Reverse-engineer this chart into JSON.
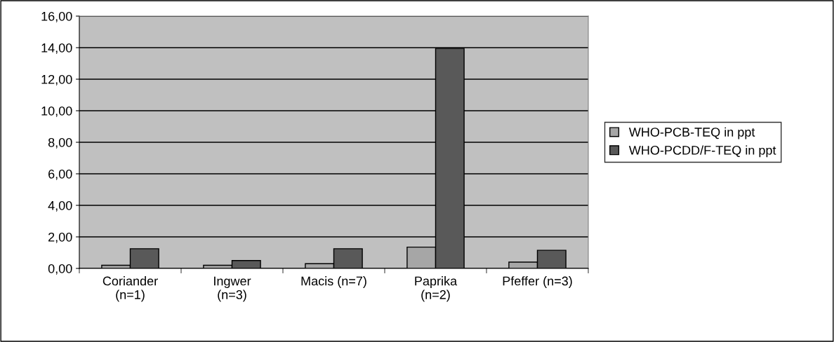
{
  "chart_data": {
    "type": "bar",
    "categories": [
      "Coriander\n(n=1)",
      "Ingwer\n(n=3)",
      "Macis (n=7)",
      "Paprika\n(n=2)",
      "Pfeffer (n=3)"
    ],
    "series": [
      {
        "name": "WHO-PCB-TEQ in ppt",
        "color": "#a6a6a6",
        "values": [
          0.2,
          0.2,
          0.3,
          1.35,
          0.4
        ]
      },
      {
        "name": "WHO-PCDD/F-TEQ in ppt",
        "color": "#595959",
        "values": [
          1.25,
          0.5,
          1.25,
          13.95,
          1.15
        ]
      }
    ],
    "ylim": [
      0,
      16
    ],
    "yticks": [
      {
        "value": 0,
        "label": "0,00"
      },
      {
        "value": 2,
        "label": "2,00"
      },
      {
        "value": 4,
        "label": "4,00"
      },
      {
        "value": 6,
        "label": "6,00"
      },
      {
        "value": 8,
        "label": "8,00"
      },
      {
        "value": 10,
        "label": "10,00"
      },
      {
        "value": 12,
        "label": "12,00"
      },
      {
        "value": 14,
        "label": "14,00"
      },
      {
        "value": 16,
        "label": "16,00"
      }
    ],
    "grid": "y",
    "legend": "right"
  }
}
